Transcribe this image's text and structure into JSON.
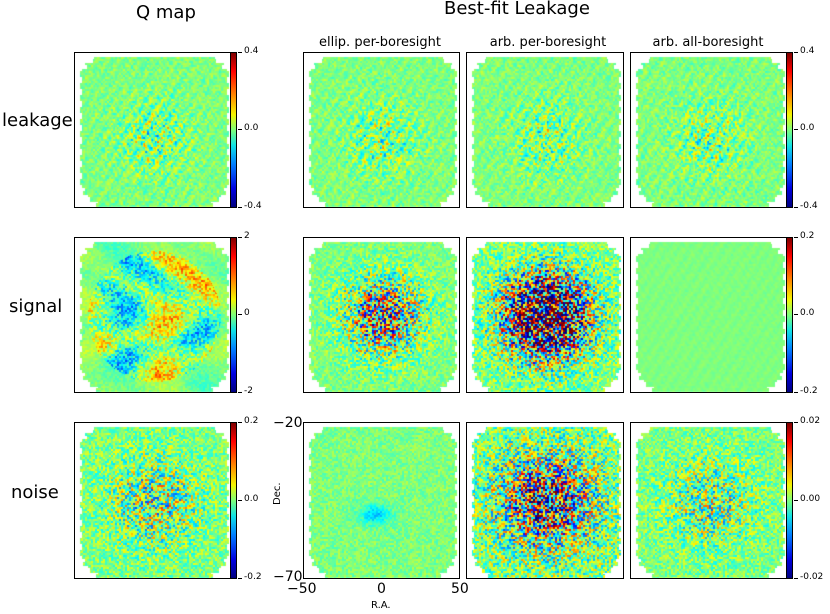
{
  "headers": {
    "q_map": "Q map",
    "best_fit": "Best-fit Leakage"
  },
  "columns": [
    "ellip. per-boresight",
    "arb. per-boresight",
    "arb. all-boresight"
  ],
  "rows": [
    "leakage",
    "signal",
    "noise"
  ],
  "colorbars": {
    "q_leakage": [
      "0.4",
      "0.0",
      "-0.4"
    ],
    "q_signal": [
      "2",
      "0",
      "-2"
    ],
    "q_noise": [
      "0.2",
      "0.0",
      "-0.2"
    ],
    "fit_leakage": [
      "0.4",
      "0.0",
      "-0.4"
    ],
    "fit_signal": [
      "0.2",
      "0.0",
      "-0.2"
    ],
    "fit_noise": [
      "0.02",
      "0.00",
      "-0.02"
    ]
  },
  "axes": {
    "dec_label": "Dec.",
    "ra_label": "R.A.",
    "dec_ticks": [
      "−20",
      "−70"
    ],
    "ra_ticks": [
      "−50",
      "0",
      "50"
    ]
  },
  "chart_data": {
    "type": "heatmap",
    "title": "Q map and Best-fit Leakage",
    "xlabel": "R.A.",
    "ylabel": "Dec.",
    "xlim": [
      -50,
      50
    ],
    "ylim": [
      -70,
      -20
    ],
    "colormap": "jet",
    "panels": [
      {
        "row": "leakage",
        "column": "Q map",
        "color_range": [
          -0.4,
          0.4
        ],
        "pattern": "leakage",
        "amplitude": 0.45
      },
      {
        "row": "leakage",
        "column": "ellip. per-boresight",
        "color_range": [
          -0.4,
          0.4
        ],
        "pattern": "leakage",
        "amplitude": 0.45
      },
      {
        "row": "leakage",
        "column": "arb. per-boresight",
        "color_range": [
          -0.4,
          0.4
        ],
        "pattern": "leakage",
        "amplitude": 0.45
      },
      {
        "row": "leakage",
        "column": "arb. all-boresight",
        "color_range": [
          -0.4,
          0.4
        ],
        "pattern": "leakage",
        "amplitude": 0.45
      },
      {
        "row": "signal",
        "column": "Q map",
        "color_range": [
          -2,
          2
        ],
        "pattern": "signal-map",
        "amplitude": 0.55
      },
      {
        "row": "signal",
        "column": "ellip. per-boresight",
        "color_range": [
          -0.2,
          0.2
        ],
        "pattern": "central",
        "amplitude": 0.8
      },
      {
        "row": "signal",
        "column": "arb. per-boresight",
        "color_range": [
          -0.2,
          0.2
        ],
        "pattern": "central",
        "amplitude": 1.6
      },
      {
        "row": "signal",
        "column": "arb. all-boresight",
        "color_range": [
          -0.2,
          0.2
        ],
        "pattern": "faint",
        "amplitude": 0.06
      },
      {
        "row": "noise",
        "column": "Q map",
        "color_range": [
          -0.2,
          0.2
        ],
        "pattern": "noise",
        "amplitude": 0.5
      },
      {
        "row": "noise",
        "column": "ellip. per-boresight",
        "color_range": [
          -0.02,
          0.02
        ],
        "pattern": "faint-center",
        "amplitude": 0.12
      },
      {
        "row": "noise",
        "column": "arb. per-boresight",
        "color_range": [
          -0.02,
          0.02
        ],
        "pattern": "noise",
        "amplitude": 0.9
      },
      {
        "row": "noise",
        "column": "arb. all-boresight",
        "color_range": [
          -0.02,
          0.02
        ],
        "pattern": "noise",
        "amplitude": 0.45
      }
    ]
  }
}
